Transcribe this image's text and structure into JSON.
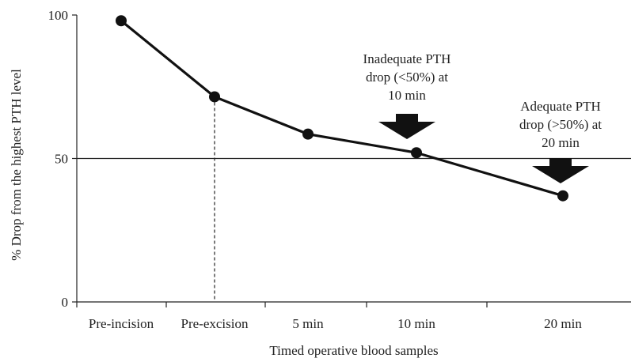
{
  "chart_data": {
    "type": "line",
    "categories": [
      "Pre-incision",
      "Pre-excision",
      "5 min",
      "10 min",
      "20 min"
    ],
    "series": [
      {
        "values": [
          98,
          71.5,
          58.5,
          52,
          37
        ]
      }
    ],
    "xlabel": "Timed operative blood samples",
    "ylabel": "% Drop from the highest PTH level",
    "ylim": [
      0,
      100
    ],
    "yticks": [
      0,
      50,
      100
    ],
    "reference_line_y": 50,
    "dashed_drop_line_category": "Pre-excision",
    "grid": false,
    "annotations": [
      {
        "lines": [
          "Inadequate PTH",
          "drop (<50%) at",
          "10 min"
        ],
        "points_to": "10 min"
      },
      {
        "lines": [
          "Adequate PTH",
          "drop (>50%) at",
          "20 min"
        ],
        "points_to": "20 min"
      }
    ],
    "colors": {
      "line": "#111111",
      "axis": "#222222",
      "arrow": "#111111"
    }
  }
}
